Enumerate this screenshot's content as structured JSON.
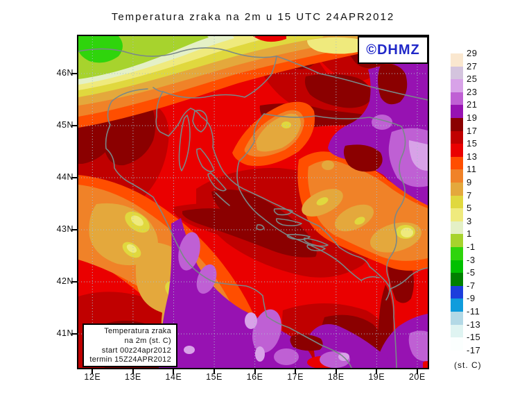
{
  "title": "Temperatura zraka na 2m u 15 UTC 24APR2012",
  "watermark": {
    "label": "©DHMZ",
    "color": "#2028C8"
  },
  "axes": {
    "lat_labels": [
      "46N",
      "45N",
      "44N",
      "43N",
      "42N",
      "41N"
    ],
    "lon_labels": [
      "12E",
      "13E",
      "14E",
      "15E",
      "16E",
      "17E",
      "18E",
      "19E",
      "20E"
    ]
  },
  "legend_box": {
    "lines": [
      "Temperatura zraka",
      "na 2m (st. C)",
      "start 00z24apr2012",
      "termin 15Z24APR2012"
    ]
  },
  "colorbar": {
    "unit": "(st. C)",
    "tick_labels": [
      "29",
      "27",
      "25",
      "23",
      "21",
      "19",
      "17",
      "15",
      "13",
      "11",
      "9",
      "7",
      "5",
      "3",
      "1",
      "-1",
      "-3",
      "-5",
      "-7",
      "-9",
      "-11",
      "-13",
      "-15",
      "-17"
    ],
    "colors": [
      "#FAE7CF",
      "#D4C4DE",
      "#D8A2E8",
      "#BF60D4",
      "#9712B2",
      "#8B0000",
      "#C00000",
      "#EA0000",
      "#FF4E00",
      "#F08228",
      "#E4A83C",
      "#E0D83E",
      "#EFEA7D",
      "#E4F0C6",
      "#A7D32D",
      "#2FD40C",
      "#00C000",
      "#008000",
      "#1C3EDC",
      "#0F9CDC",
      "#B3D9E6",
      "#DFF4F2",
      "#FBFFFE"
    ]
  },
  "map_style": {
    "frame_color": "#000000",
    "coast_border_color": "#7A8888",
    "grid_color": "#A9BFCC"
  }
}
